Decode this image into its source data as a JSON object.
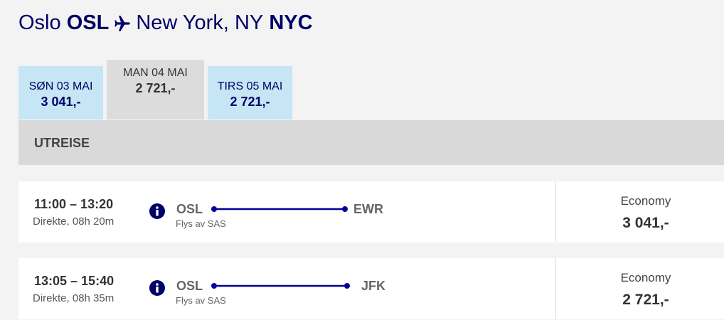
{
  "header": {
    "origin_city": "Oslo",
    "origin_code": "OSL",
    "destination_city": "New York, NY",
    "destination_code": "NYC"
  },
  "date_tabs": [
    {
      "date": "SØN 03 MAI",
      "price": "3 041,-",
      "selected": false
    },
    {
      "date": "MAN 04 MAI",
      "price": "2 721,-",
      "selected": true
    },
    {
      "date": "TIRS 05 MAI",
      "price": "2 721,-",
      "selected": false
    }
  ],
  "section": "UTREISE",
  "flights": [
    {
      "time": "11:00 – 13:20",
      "details": "Direkte, 08h 20m",
      "from": "OSL",
      "to": "EWR",
      "operator": "Flys av SAS",
      "cabin": "Economy",
      "price": "3 041,-"
    },
    {
      "time": "13:05 – 15:40",
      "details": "Direkte, 08h 35m",
      "from": "OSL",
      "to": "JFK",
      "operator": "Flys av SAS",
      "cabin": "Economy",
      "price": "2 721,-"
    }
  ]
}
